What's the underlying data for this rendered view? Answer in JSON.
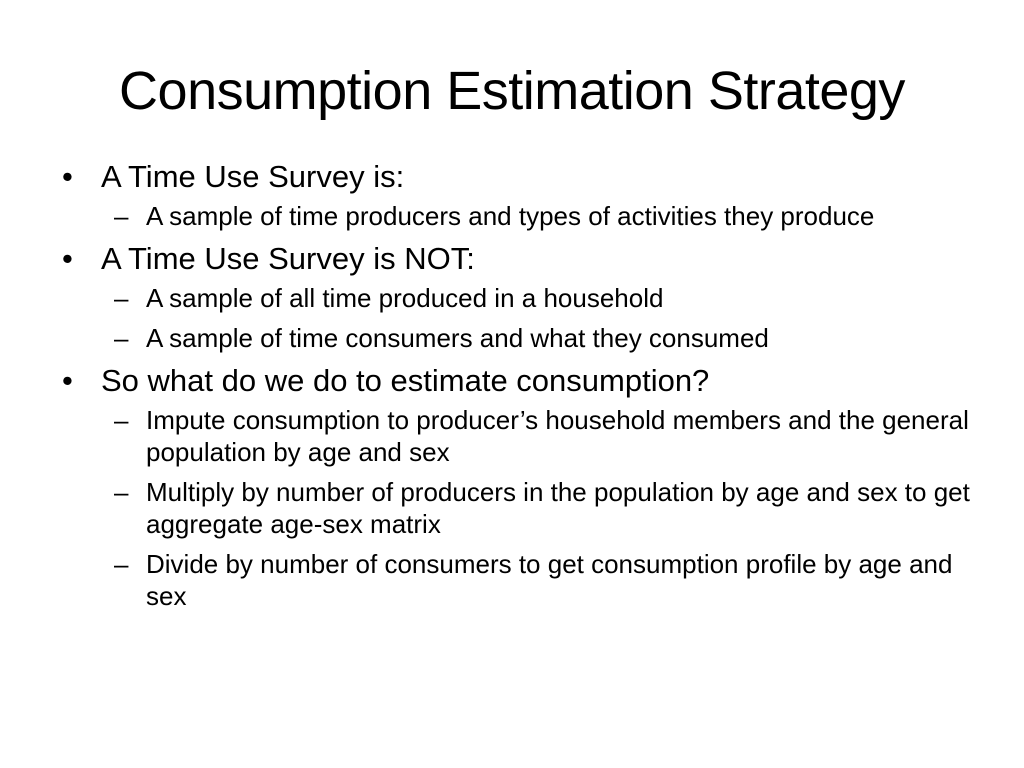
{
  "slide": {
    "title": "Consumption Estimation Strategy",
    "sections": [
      {
        "bullet": "A Time Use Survey is:",
        "items": [
          "A sample of time producers and types of activities they produce"
        ]
      },
      {
        "bullet": "A Time Use Survey is NOT:",
        "items": [
          "A sample of all time produced in a household",
          "A sample of time consumers and what they consumed"
        ]
      },
      {
        "bullet": "So what do we do to estimate consumption?",
        "items": [
          "Impute consumption to producer’s household members and the general population by age and sex",
          "Multiply by number of producers in the population by age and sex to get aggregate age-sex matrix",
          "Divide by number of consumers  to get consumption profile by age and sex"
        ]
      }
    ],
    "bullet_marker": "•",
    "dash_marker": "–"
  }
}
